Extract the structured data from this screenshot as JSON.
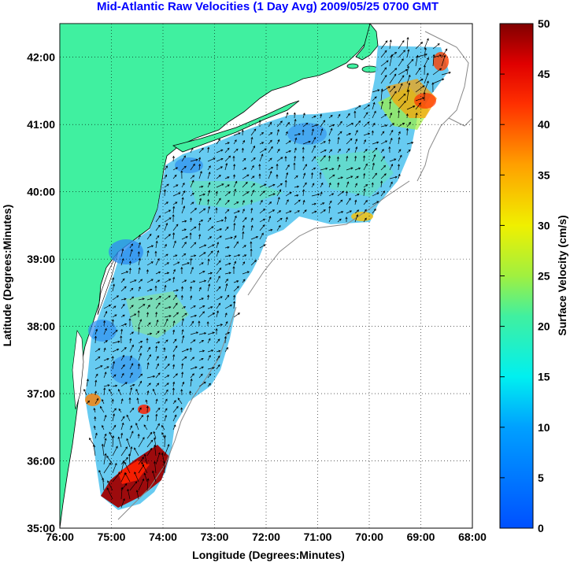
{
  "title": "Mid-Atlantic Raw Velocities (1 Day Avg) 2009/05/25 0700 GMT",
  "map": {
    "x_axis": {
      "label": "Longitude (Degrees:Minutes)",
      "ticks": [
        "76:00",
        "75:00",
        "74:00",
        "73:00",
        "72:00",
        "71:00",
        "70:00",
        "69:00",
        "68:00"
      ]
    },
    "y_axis": {
      "label": "Latitude (Degrees:Minutes)",
      "ticks": [
        "35:00",
        "36:00",
        "37:00",
        "38:00",
        "39:00",
        "40:00",
        "41:00",
        "42:00"
      ]
    },
    "lon_range": [
      -76,
      -68
    ],
    "lat_range": [
      35,
      42.5
    ],
    "grid": "dotted",
    "colors": {
      "land": "#40f0a0",
      "ocean": "#ffffff",
      "coastline": "#000000",
      "bathymetry": "#888888"
    }
  },
  "colorbar": {
    "label": "Surface Velocity (cm/s)",
    "ticks": [
      "0",
      "5",
      "10",
      "15",
      "20",
      "25",
      "30",
      "35",
      "40",
      "45",
      "50"
    ],
    "range": [
      0,
      50
    ],
    "colormap": "jet"
  }
}
